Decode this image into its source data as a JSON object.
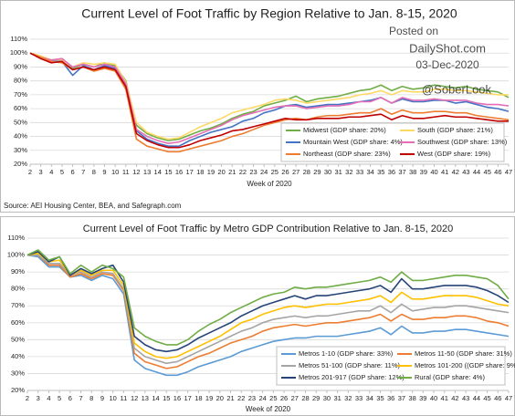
{
  "chart_data": [
    {
      "type": "line",
      "title": "Current Level of Foot Traffic by Region Relative to Jan. 8-15, 2020",
      "x_label": "Week of 2020",
      "source": "Source: AEI Housing Center, BEA, and Safegraph.com",
      "annotations": [
        "Posted on",
        "DailyShot.com",
        "03-Dec-2020",
        "@SoberLook"
      ],
      "x": [
        2,
        3,
        4,
        5,
        6,
        7,
        8,
        9,
        10,
        11,
        12,
        13,
        14,
        15,
        16,
        17,
        18,
        19,
        20,
        21,
        22,
        23,
        24,
        25,
        26,
        27,
        28,
        29,
        30,
        31,
        32,
        33,
        34,
        35,
        36,
        37,
        38,
        39,
        40,
        41,
        42,
        43,
        44,
        45,
        46,
        47
      ],
      "xlim": [
        2,
        47
      ],
      "ylim": [
        20,
        110
      ],
      "yticks": [
        {
          "value": 20,
          "label": "20%"
        },
        {
          "value": 30,
          "label": "30%"
        },
        {
          "value": 40,
          "label": "40%"
        },
        {
          "value": 50,
          "label": "50%"
        },
        {
          "value": 60,
          "label": "60%"
        },
        {
          "value": 70,
          "label": "70%"
        },
        {
          "value": 80,
          "label": "80%"
        },
        {
          "value": 90,
          "label": "90%"
        },
        {
          "value": 100,
          "label": "100%"
        },
        {
          "value": 110,
          "label": "110%"
        }
      ],
      "grid": true,
      "legend": "lower right",
      "series": [
        {
          "name": "Midwest (GDP share: 20%)",
          "color": "#70ad47",
          "values": [
            100,
            97,
            95,
            96,
            89,
            92,
            90,
            93,
            91,
            80,
            48,
            42,
            39,
            37,
            38,
            41,
            44,
            46,
            49,
            53,
            56,
            58,
            62,
            64,
            66,
            69,
            65,
            67,
            68,
            69,
            71,
            73,
            74,
            77,
            73,
            76,
            74,
            75,
            77,
            76,
            75,
            76,
            74,
            73,
            72,
            68
          ]
        },
        {
          "name": "South (GDP share: 21%)",
          "color": "#ffd966",
          "values": [
            100,
            98,
            95,
            95,
            90,
            93,
            92,
            93,
            92,
            79,
            50,
            43,
            40,
            38,
            39,
            43,
            47,
            50,
            53,
            57,
            59,
            61,
            63,
            66,
            67,
            66,
            64,
            65,
            66,
            67,
            68,
            70,
            71,
            73,
            70,
            73,
            72,
            72,
            74,
            74,
            73,
            73,
            72,
            71,
            70,
            70
          ]
        },
        {
          "name": "Mountain West (GDP share: 4%)",
          "color": "#4472c4",
          "values": [
            100,
            97,
            94,
            94,
            84,
            91,
            88,
            91,
            89,
            77,
            44,
            38,
            35,
            33,
            33,
            37,
            40,
            43,
            45,
            47,
            51,
            53,
            57,
            59,
            62,
            63,
            61,
            62,
            63,
            63,
            64,
            65,
            66,
            68,
            64,
            67,
            65,
            65,
            66,
            66,
            64,
            65,
            63,
            61,
            60,
            58
          ]
        },
        {
          "name": "Southwest (GDP share: 13%)",
          "color": "#e46fb6",
          "values": [
            100,
            97,
            95,
            96,
            90,
            92,
            90,
            92,
            90,
            78,
            45,
            40,
            37,
            35,
            36,
            39,
            42,
            45,
            48,
            52,
            55,
            57,
            59,
            61,
            62,
            62,
            60,
            61,
            62,
            62,
            63,
            65,
            65,
            68,
            64,
            68,
            66,
            66,
            67,
            66,
            66,
            66,
            64,
            63,
            63,
            62
          ]
        },
        {
          "name": "Northeast (GDP share: 23%)",
          "color": "#ed7d31",
          "values": [
            100,
            97,
            94,
            93,
            88,
            90,
            87,
            89,
            87,
            74,
            38,
            33,
            31,
            29,
            29,
            31,
            33,
            35,
            37,
            40,
            42,
            45,
            48,
            50,
            52,
            53,
            52,
            54,
            55,
            55,
            56,
            57,
            57,
            60,
            56,
            59,
            57,
            57,
            58,
            58,
            57,
            57,
            55,
            54,
            53,
            52
          ]
        },
        {
          "name": "West (GDP share: 19%)",
          "color": "#c00000",
          "values": [
            100,
            96,
            93,
            94,
            88,
            90,
            88,
            90,
            88,
            76,
            42,
            37,
            34,
            32,
            32,
            34,
            37,
            39,
            41,
            44,
            45,
            47,
            49,
            51,
            53,
            52,
            52,
            53,
            53,
            53,
            54,
            54,
            55,
            56,
            52,
            55,
            53,
            53,
            54,
            55,
            54,
            54,
            53,
            52,
            51,
            51
          ]
        }
      ]
    },
    {
      "type": "line",
      "title": "Current Level of Foot Traffic by Metro GDP Contribution Relative to Jan. 8-15, 2020",
      "x_label": "Week of 2020",
      "x": [
        2,
        3,
        4,
        5,
        6,
        7,
        8,
        9,
        10,
        11,
        12,
        13,
        14,
        15,
        16,
        17,
        18,
        19,
        20,
        21,
        22,
        23,
        24,
        25,
        26,
        27,
        28,
        29,
        30,
        31,
        32,
        33,
        34,
        35,
        36,
        37,
        38,
        39,
        40,
        41,
        42,
        43,
        44,
        45,
        46,
        47
      ],
      "xlim": [
        2,
        47
      ],
      "ylim": [
        20,
        110
      ],
      "yticks": [
        {
          "value": 20,
          "label": "20%"
        },
        {
          "value": 30,
          "label": "30%"
        },
        {
          "value": 40,
          "label": "40%"
        },
        {
          "value": 50,
          "label": "50%"
        },
        {
          "value": 60,
          "label": "60%"
        },
        {
          "value": 70,
          "label": "70%"
        },
        {
          "value": 80,
          "label": "80%"
        },
        {
          "value": 90,
          "label": "90%"
        },
        {
          "value": 100,
          "label": "100%"
        },
        {
          "value": 110,
          "label": "110%"
        }
      ],
      "grid": true,
      "legend": "lower right",
      "series": [
        {
          "name": "Metros  1-10 (GDP share: 33%)",
          "color": "#5b9bd5",
          "values": [
            100,
            99,
            93,
            93,
            87,
            88,
            85,
            88,
            86,
            77,
            38,
            33,
            31,
            29,
            29,
            31,
            34,
            36,
            38,
            40,
            43,
            45,
            47,
            49,
            50,
            51,
            51,
            52,
            52,
            52,
            53,
            54,
            55,
            57,
            53,
            58,
            54,
            54,
            55,
            55,
            56,
            56,
            55,
            54,
            53,
            52
          ]
        },
        {
          "name": "Metros  11-50 (GDP share: 31%)",
          "color": "#ed7d31",
          "values": [
            100,
            100,
            94,
            94,
            87,
            89,
            86,
            89,
            88,
            79,
            42,
            37,
            35,
            33,
            34,
            37,
            40,
            42,
            45,
            48,
            50,
            52,
            55,
            57,
            58,
            59,
            58,
            59,
            60,
            60,
            61,
            62,
            63,
            65,
            61,
            65,
            62,
            62,
            63,
            63,
            64,
            64,
            63,
            61,
            60,
            58
          ]
        },
        {
          "name": "Metros  51-100 (GDP share: 11%)",
          "color": "#a5a5a5",
          "values": [
            100,
            100,
            95,
            95,
            88,
            90,
            87,
            90,
            89,
            80,
            45,
            40,
            38,
            36,
            37,
            40,
            43,
            46,
            49,
            52,
            55,
            57,
            60,
            62,
            63,
            64,
            63,
            64,
            64,
            65,
            66,
            67,
            67,
            70,
            66,
            71,
            67,
            68,
            69,
            69,
            70,
            70,
            69,
            68,
            67,
            66
          ]
        },
        {
          "name": "Metros  101-200 ((GDP share: 9%)",
          "color": "#ffc000",
          "values": [
            100,
            101,
            96,
            97,
            88,
            91,
            88,
            91,
            91,
            82,
            48,
            43,
            40,
            39,
            40,
            43,
            46,
            49,
            52,
            56,
            60,
            62,
            65,
            67,
            69,
            70,
            69,
            70,
            71,
            71,
            72,
            73,
            74,
            76,
            72,
            78,
            74,
            74,
            75,
            76,
            76,
            76,
            75,
            73,
            71,
            70
          ]
        },
        {
          "name": "Metros  201-917 (GDP share: 12%)",
          "color": "#264478",
          "values": [
            100,
            102,
            96,
            99,
            88,
            92,
            89,
            92,
            94,
            84,
            52,
            47,
            44,
            43,
            44,
            47,
            51,
            54,
            57,
            60,
            64,
            67,
            70,
            72,
            74,
            76,
            74,
            76,
            76,
            77,
            78,
            79,
            80,
            82,
            78,
            86,
            80,
            80,
            81,
            82,
            82,
            82,
            81,
            79,
            76,
            72
          ]
        },
        {
          "name": "Rural (GDP share: 4%)",
          "color": "#70ad47",
          "values": [
            100,
            103,
            97,
            99,
            89,
            94,
            90,
            94,
            92,
            87,
            57,
            52,
            49,
            47,
            47,
            50,
            55,
            59,
            62,
            66,
            69,
            72,
            75,
            77,
            78,
            81,
            80,
            81,
            81,
            82,
            83,
            84,
            85,
            87,
            84,
            90,
            85,
            85,
            86,
            87,
            88,
            88,
            87,
            86,
            82,
            74
          ]
        }
      ]
    }
  ]
}
